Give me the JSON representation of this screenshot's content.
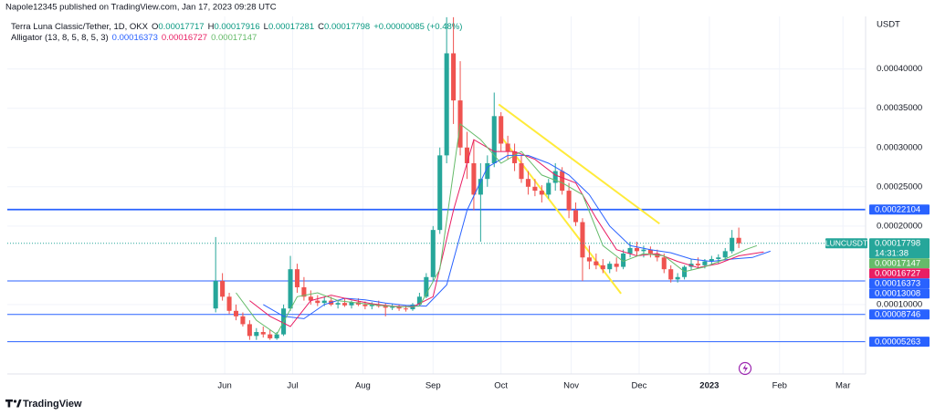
{
  "header": {
    "published": "Napole12345 published on TradingView.com, Jan 17, 2023 09:28 UTC"
  },
  "footer": {
    "brand": "TradingView"
  },
  "chart_data": {
    "type": "candlestick",
    "title": "Terra Luna Classic/Tether, 1D, OKX",
    "quote": [
      {
        "key": "O",
        "value": 0.00017717
      },
      {
        "key": "H",
        "value": 0.00017916
      },
      {
        "key": "L",
        "value": 0.00017281
      },
      {
        "key": "C",
        "value": 0.00017798
      }
    ],
    "change": "+0.00000085 (+0.48%)",
    "symbol": "LUNCUSDT",
    "countdown": "14:31:38",
    "y_unit": "USDT",
    "up_color": "#26a69a",
    "down_color": "#ef5350",
    "x": [
      "2022-05-28",
      "2022-05-31",
      "2022-06-03",
      "2022-06-06",
      "2022-06-09",
      "2022-06-12",
      "2022-06-15",
      "2022-06-18",
      "2022-06-21",
      "2022-06-24",
      "2022-06-27",
      "2022-06-30",
      "2022-07-03",
      "2022-07-06",
      "2022-07-09",
      "2022-07-12",
      "2022-07-15",
      "2022-07-18",
      "2022-07-21",
      "2022-07-24",
      "2022-07-27",
      "2022-07-30",
      "2022-08-02",
      "2022-08-05",
      "2022-08-08",
      "2022-08-11",
      "2022-08-14",
      "2022-08-17",
      "2022-08-20",
      "2022-08-23",
      "2022-08-26",
      "2022-08-29",
      "2022-09-01",
      "2022-09-04",
      "2022-09-07",
      "2022-09-10",
      "2022-09-13",
      "2022-09-16",
      "2022-09-19",
      "2022-09-22",
      "2022-09-25",
      "2022-09-28",
      "2022-10-01",
      "2022-10-04",
      "2022-10-07",
      "2022-10-10",
      "2022-10-13",
      "2022-10-16",
      "2022-10-19",
      "2022-10-22",
      "2022-10-25",
      "2022-10-28",
      "2022-10-31",
      "2022-11-03",
      "2022-11-06",
      "2022-11-09",
      "2022-11-12",
      "2022-11-15",
      "2022-11-18",
      "2022-11-21",
      "2022-11-24",
      "2022-11-27",
      "2022-11-30",
      "2022-12-03",
      "2022-12-06",
      "2022-12-09",
      "2022-12-12",
      "2022-12-15",
      "2022-12-18",
      "2022-12-21",
      "2022-12-24",
      "2022-12-27",
      "2022-12-30",
      "2023-01-02",
      "2023-01-05",
      "2023-01-08",
      "2023-01-11",
      "2023-01-14"
    ],
    "open": [
      9.5e-05,
      0.00013,
      0.00011,
      9.2e-05,
      8.5e-05,
      7.5e-05,
      6e-05,
      6.5e-05,
      6.2e-05,
      5.7e-05,
      6.2e-05,
      9.5e-05,
      0.000145,
      0.000122,
      0.00011,
      0.000105,
      0.000102,
      0.000105,
      0.0001,
      0.000102,
      9.9e-05,
      0.000103,
      0.0001,
      9.8e-05,
      0.0001,
      9.8e-05,
      9.6e-05,
      9.7e-05,
      9.5e-05,
      9.4e-05,
      0.0001,
      0.00011,
      0.000135,
      0.000195,
      0.00029,
      0.00042,
      0.00036,
      0.0003,
      0.00028,
      0.00024,
      0.00026,
      0.00028,
      0.00034,
      0.000305,
      0.000295,
      0.00028,
      0.00026,
      0.00025,
      0.000245,
      0.00024,
      0.000255,
      0.00027,
      0.000245,
      0.00022,
      0.000205,
      0.00016,
      0.000155,
      0.00015,
      0.000145,
      0.000152,
      0.000148,
      0.000165,
      0.000172,
      0.000168,
      0.00017,
      0.000165,
      0.00016,
      0.000145,
      0.000132,
      0.000135,
      0.000148,
      0.000152,
      0.00015,
      0.000155,
      0.000158,
      0.00016,
      0.000168,
      0.000185
    ],
    "high": [
      0.000186,
      0.00014,
      0.000115,
      0.0001,
      9e-05,
      8e-05,
      7e-05,
      7.2e-05,
      6.8e-05,
      6.5e-05,
      0.0001,
      0.000162,
      0.000152,
      0.000135,
      0.000118,
      0.000112,
      0.00011,
      0.00011,
      0.000106,
      0.000108,
      0.000105,
      0.000108,
      0.000104,
      0.000103,
      0.000105,
      0.000102,
      0.000101,
      0.0001,
      9.9e-05,
      0.000102,
      0.000115,
      0.00014,
      0.0002,
      0.0003,
      0.000466,
      0.000466,
      0.00041,
      0.00032,
      0.00031,
      0.00028,
      0.00029,
      0.00037,
      0.000345,
      0.000315,
      0.000305,
      0.00029,
      0.00027,
      0.00026,
      0.000252,
      0.00026,
      0.00028,
      0.000275,
      0.000255,
      0.00023,
      0.00021,
      0.000175,
      0.000165,
      0.000158,
      0.000155,
      0.00016,
      0.00017,
      0.00018,
      0.00018,
      0.000175,
      0.000174,
      0.00017,
      0.000165,
      0.00015,
      0.00014,
      0.00015,
      0.000158,
      0.00016,
      0.000158,
      0.000162,
      0.000164,
      0.000172,
      0.000195,
      0.000198
    ],
    "low": [
      9e-05,
      0.000105,
      8.8e-05,
      8e-05,
      7.2e-05,
      5.5e-05,
      5.5e-05,
      5.8e-05,
      5.5e-05,
      5.5e-05,
      6e-05,
      9.2e-05,
      0.000115,
      0.000105,
      0.0001,
      9.8e-05,
      9.8e-05,
      9.8e-05,
      9.5e-05,
      9.7e-05,
      9.5e-05,
      9.8e-05,
      9.4e-05,
      9.4e-05,
      9.6e-05,
      8.5e-05,
      9.3e-05,
      9.2e-05,
      9.1e-05,
      9.2e-05,
      9.8e-05,
      0.000108,
      0.00013,
      0.00019,
      0.00028,
      0.00033,
      0.00029,
      0.00026,
      0.00022,
      0.00018,
      0.00025,
      0.000275,
      0.000295,
      0.000285,
      0.00027,
      0.000255,
      0.00024,
      0.000238,
      0.00023,
      0.000235,
      0.000245,
      0.00024,
      0.00021,
      0.0002,
      0.00013,
      0.000145,
      0.000145,
      0.00014,
      0.00014,
      0.000142,
      0.000145,
      0.00016,
      0.000162,
      0.00016,
      0.00016,
      0.000155,
      0.00014,
      0.000128,
      0.000128,
      0.000132,
      0.000144,
      0.000146,
      0.000146,
      0.00015,
      0.000152,
      0.000158,
      0.000165,
      0.000172
    ],
    "close": [
      0.00013,
      0.00011,
      9.2e-05,
      8.5e-05,
      7.5e-05,
      6e-05,
      6.5e-05,
      6.2e-05,
      5.7e-05,
      6.2e-05,
      9.5e-05,
      0.000145,
      0.000122,
      0.00011,
      0.000105,
      0.000102,
      0.000105,
      0.0001,
      0.000102,
      9.9e-05,
      0.000103,
      0.0001,
      9.8e-05,
      0.0001,
      9.8e-05,
      9.6e-05,
      9.7e-05,
      9.5e-05,
      9.4e-05,
      0.0001,
      0.00011,
      0.000135,
      0.000195,
      0.00029,
      0.00042,
      0.00036,
      0.0003,
      0.00028,
      0.00024,
      0.00026,
      0.00028,
      0.00034,
      0.000305,
      0.000295,
      0.00028,
      0.00026,
      0.00025,
      0.000245,
      0.00024,
      0.000255,
      0.00027,
      0.000245,
      0.00022,
      0.000205,
      0.00016,
      0.000155,
      0.00015,
      0.000145,
      0.000152,
      0.000148,
      0.000165,
      0.000172,
      0.000168,
      0.00017,
      0.000165,
      0.00016,
      0.000145,
      0.000132,
      0.000135,
      0.000148,
      0.000152,
      0.00015,
      0.000155,
      0.000158,
      0.00016,
      0.000168,
      0.000185,
      0.00017798
    ],
    "indicator": {
      "label": "Alligator (13, 8, 5, 8, 5, 3)",
      "lines": [
        {
          "color": "#2962ff",
          "last": 0.00016373,
          "x": [
            "2022-06-18",
            "2022-06-27",
            "2022-07-06",
            "2022-07-15",
            "2022-07-24",
            "2022-08-02",
            "2022-08-11",
            "2022-08-20",
            "2022-08-29",
            "2022-09-07",
            "2022-09-16",
            "2022-09-25",
            "2022-10-04",
            "2022-10-13",
            "2022-10-22",
            "2022-10-31",
            "2022-11-09",
            "2022-11-18",
            "2022-11-27",
            "2022-12-06",
            "2022-12-15",
            "2022-12-24",
            "2023-01-02",
            "2023-01-11",
            "2023-01-20",
            "2023-01-28"
          ],
          "values": [
            0.0001,
            8.5e-05,
            8.2e-05,
            0.0001,
            0.000108,
            0.000106,
            0.000102,
            9.9e-05,
            9.8e-05,
            0.000125,
            0.00022,
            0.000275,
            0.00029,
            0.00029,
            0.00028,
            0.000265,
            0.00024,
            0.0002,
            0.000175,
            0.00017,
            0.000166,
            0.000158,
            0.000155,
            0.000158,
            0.00016,
            0.000168
          ]
        },
        {
          "color": "#e91e63",
          "last": 0.00016727,
          "x": [
            "2022-06-12",
            "2022-06-21",
            "2022-06-30",
            "2022-07-09",
            "2022-07-18",
            "2022-07-27",
            "2022-08-05",
            "2022-08-14",
            "2022-08-23",
            "2022-09-01",
            "2022-09-10",
            "2022-09-19",
            "2022-09-28",
            "2022-10-07",
            "2022-10-16",
            "2022-10-25",
            "2022-11-03",
            "2022-11-12",
            "2022-11-21",
            "2022-11-30",
            "2022-12-09",
            "2022-12-18",
            "2022-12-27",
            "2023-01-05",
            "2023-01-14",
            "2023-01-25"
          ],
          "values": [
            0.000105,
            8.5e-05,
            7.2e-05,
            0.000105,
            0.000112,
            0.000106,
            0.000101,
            9.8e-05,
            9.7e-05,
            0.00011,
            0.00022,
            0.00031,
            0.000295,
            0.000295,
            0.000285,
            0.000265,
            0.000255,
            0.00021,
            0.00017,
            0.000162,
            0.000165,
            0.000155,
            0.000147,
            0.000152,
            0.000162,
            0.000167
          ]
        },
        {
          "color": "#66bb6a",
          "last": 0.00017147,
          "x": [
            "2022-06-06",
            "2022-06-15",
            "2022-06-24",
            "2022-07-03",
            "2022-07-12",
            "2022-07-21",
            "2022-07-30",
            "2022-08-08",
            "2022-08-17",
            "2022-08-26",
            "2022-09-04",
            "2022-09-13",
            "2022-09-22",
            "2022-10-01",
            "2022-10-10",
            "2022-10-19",
            "2022-10-28",
            "2022-11-06",
            "2022-11-15",
            "2022-11-24",
            "2022-12-03",
            "2022-12-12",
            "2022-12-21",
            "2022-12-30",
            "2023-01-08",
            "2023-01-17",
            "2023-01-22"
          ],
          "values": [
            0.000115,
            8e-05,
            6.2e-05,
            0.00011,
            0.000115,
            0.000105,
            0.000102,
            9.9e-05,
            9.7e-05,
            9.8e-05,
            0.000145,
            0.00033,
            0.00031,
            0.00028,
            0.000295,
            0.000265,
            0.000255,
            0.00024,
            0.000175,
            0.000155,
            0.000165,
            0.000162,
            0.000142,
            0.000148,
            0.000158,
            0.00017,
            0.000175
          ]
        }
      ]
    },
    "levels": [
      {
        "value": 0.00022104,
        "color": "#2962ff"
      },
      {
        "value": 0.00013008,
        "color": "#2962ff"
      },
      {
        "value": 8.746e-05,
        "color": "#2962ff"
      },
      {
        "value": 5.263e-05,
        "color": "#2962ff"
      }
    ],
    "trendlines": [
      {
        "color": "#ffeb3b",
        "x": [
          "2022-09-30",
          "2022-12-10"
        ],
        "values": [
          0.000355,
          0.000203
        ]
      },
      {
        "color": "#ffeb3b",
        "x": [
          "2022-10-01",
          "2022-11-23"
        ],
        "values": [
          0.000314,
          0.000114
        ]
      }
    ],
    "xlim": [
      "2022-02-25",
      "2023-03-11"
    ],
    "xticks": [
      {
        "value": "2022-06-01",
        "label": "Jun"
      },
      {
        "value": "2022-07-01",
        "label": "Jul"
      },
      {
        "value": "2022-08-01",
        "label": "Aug"
      },
      {
        "value": "2022-09-01",
        "label": "Sep"
      },
      {
        "value": "2022-10-01",
        "label": "Oct"
      },
      {
        "value": "2022-11-01",
        "label": "Nov"
      },
      {
        "value": "2022-12-01",
        "label": "Dec"
      },
      {
        "value": "2023-01-01",
        "label": "2023"
      },
      {
        "value": "2023-02-01",
        "label": "Feb"
      },
      {
        "value": "2023-03-01",
        "label": "Mar"
      }
    ],
    "ylim": [
      1.16e-05,
      0.000467
    ],
    "yticks": [
      {
        "value": 0.0001,
        "label": "0.00010000"
      },
      {
        "value": 0.0002,
        "label": "0.00020000"
      },
      {
        "value": 0.00025,
        "label": "0.00025000"
      },
      {
        "value": 0.0003,
        "label": "0.00030000"
      },
      {
        "value": 0.00035,
        "label": "0.00035000"
      },
      {
        "value": 0.0004,
        "label": "0.00040000"
      }
    ],
    "grid": true
  }
}
